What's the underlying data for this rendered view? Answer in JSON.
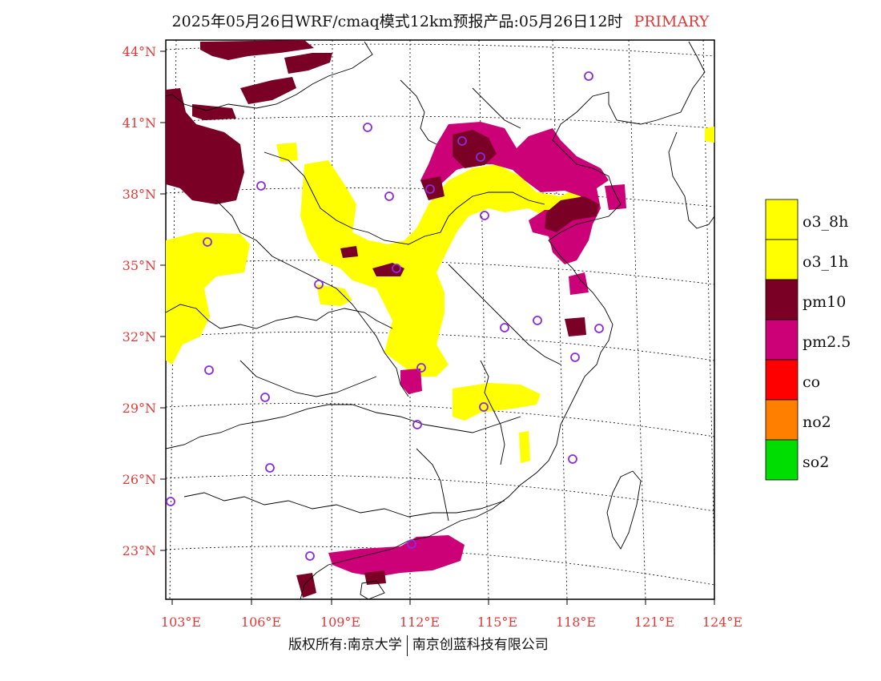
{
  "title": {
    "main": "2025年05月26日WRF/cmaq模式12km预报产品:05月26日12时",
    "tag": "PRIMARY"
  },
  "axes": {
    "lat_labels": [
      "44°N",
      "41°N",
      "38°N",
      "35°N",
      "32°N",
      "29°N",
      "26°N",
      "23°N"
    ],
    "lon_labels": [
      "103°E",
      "106°E",
      "109°E",
      "112°E",
      "115°E",
      "118°E",
      "121°E",
      "124°E"
    ]
  },
  "legend": [
    {
      "label": "o3_8h",
      "color": "#ffff00"
    },
    {
      "label": "o3_1h",
      "color": "#ffff00"
    },
    {
      "label": "pm10",
      "color": "#7a0026"
    },
    {
      "label": "pm2.5",
      "color": "#cc0077"
    },
    {
      "label": "co",
      "color": "#ff0000"
    },
    {
      "label": "no2",
      "color": "#ff7f00"
    },
    {
      "label": "so2",
      "color": "#00dd00"
    }
  ],
  "colors": {
    "axis_label": "#e03a3a",
    "station_marker": "#8a2be2",
    "o3": "#ffff00",
    "pm10": "#7a0026",
    "pm25": "#cc0077"
  },
  "footer": {
    "left": "版权所有:南京大学",
    "right": "南京创蓝科技有限公司"
  }
}
